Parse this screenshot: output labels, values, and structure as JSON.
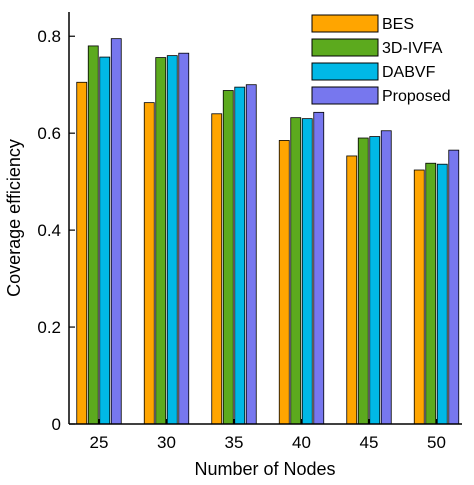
{
  "chart_data": {
    "type": "bar",
    "title": "",
    "xlabel": "Number of Nodes",
    "ylabel": "Coverage efficiency",
    "categories": [
      "25",
      "30",
      "35",
      "40",
      "45",
      "50"
    ],
    "ylim": [
      0,
      0.85
    ],
    "yticks": [
      "0",
      "0.2",
      "0.4",
      "0.6",
      "0.8"
    ],
    "grid": false,
    "legend_position": "top-right",
    "series": [
      {
        "name": "BES",
        "color": "#FFA500",
        "values": [
          0.705,
          0.663,
          0.64,
          0.585,
          0.553,
          0.524
        ]
      },
      {
        "name": "3D-IVFA",
        "color": "#5CAA1E",
        "values": [
          0.78,
          0.756,
          0.688,
          0.632,
          0.59,
          0.538
        ]
      },
      {
        "name": "DABVF",
        "color": "#00B8E6",
        "values": [
          0.757,
          0.76,
          0.695,
          0.63,
          0.593,
          0.536
        ]
      },
      {
        "name": "Proposed",
        "color": "#7777EE",
        "values": [
          0.795,
          0.765,
          0.7,
          0.643,
          0.605,
          0.565
        ]
      }
    ]
  }
}
